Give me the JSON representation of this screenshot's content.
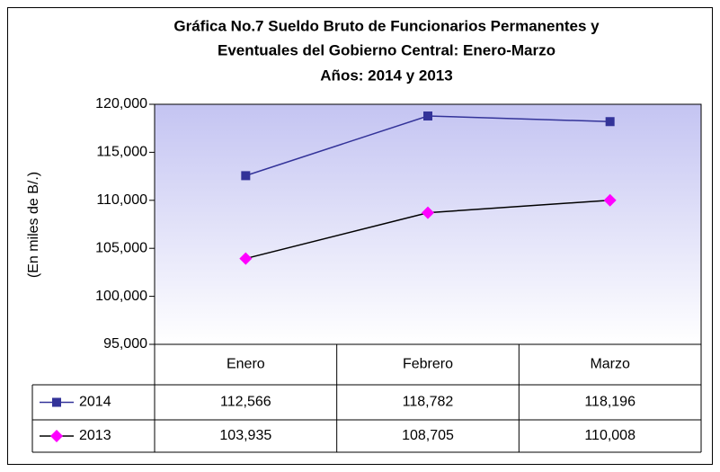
{
  "chart_data": {
    "type": "line",
    "title": [
      "Gráfica No.7 Sueldo Bruto de Funcionarios Permanentes y",
      "Eventuales del Gobierno Central: Enero-Marzo",
      "Años: 2014 y 2013"
    ],
    "y_label": "(En miles de B/.)",
    "categories": [
      "Enero",
      "Febrero",
      "Marzo"
    ],
    "series": [
      {
        "name": "2014",
        "color": "#333399",
        "marker": "square",
        "marker_color": "#333399",
        "values": [
          112566,
          118782,
          118196
        ],
        "value_labels": [
          "112,566",
          "118,782",
          "118,196"
        ]
      },
      {
        "name": "2013",
        "color": "#000000",
        "marker": "diamond",
        "marker_color": "#ff00ff",
        "values": [
          103935,
          108705,
          110008
        ],
        "value_labels": [
          "103,935",
          "108,705",
          "110,008"
        ]
      }
    ],
    "ylim": [
      95000,
      120000
    ],
    "yticks": [
      {
        "value": 95000,
        "label": "95,000"
      },
      {
        "value": 100000,
        "label": "100,000"
      },
      {
        "value": 105000,
        "label": "105,000"
      },
      {
        "value": 110000,
        "label": "110,000"
      },
      {
        "value": 115000,
        "label": "115,000"
      },
      {
        "value": 120000,
        "label": "120,000"
      }
    ],
    "grid": false,
    "data_table": true
  }
}
